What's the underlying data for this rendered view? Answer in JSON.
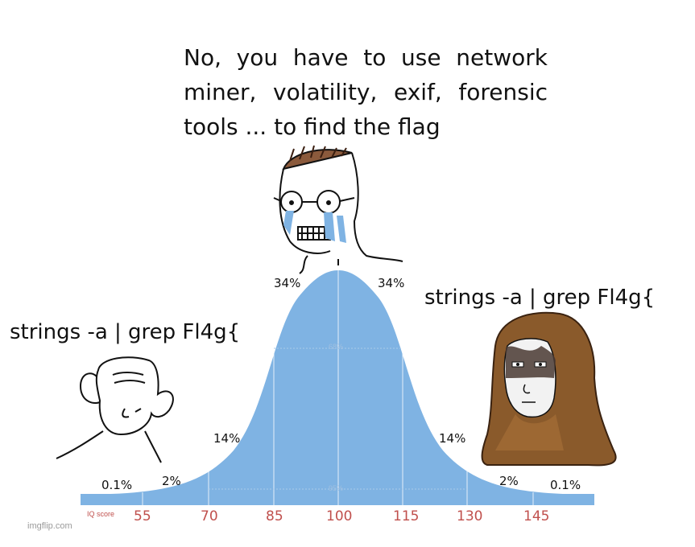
{
  "captions": {
    "top_lines": [
      "No, you have to use network",
      "miner, volatility, exif, forensic",
      "tools ... to find the flag"
    ],
    "left": "strings -a | grep Fl4g{",
    "right": "strings -a | grep Fl4g{"
  },
  "percentages": {
    "left_center": "34%",
    "right_center": "34%",
    "left_mid": "14%",
    "right_mid": "14%",
    "left_tail": "2%",
    "right_tail": "2%",
    "left_far": "0.1%",
    "right_far": "0.1%",
    "inner_68": "68%",
    "inner_95": "95%"
  },
  "axis": {
    "label": "IQ score",
    "ticks": [
      "55",
      "70",
      "85",
      "100",
      "115",
      "130",
      "145"
    ]
  },
  "watermark": "imgflip.com",
  "colors": {
    "curve_fill": "#7fb3e3",
    "tick_text": "#c0504d",
    "hood": "#8a5a2b",
    "tears": "#7fb3e3"
  },
  "characters": [
    "crying-nerd-wojak",
    "simple-wojak",
    "hooded-wojak"
  ]
}
